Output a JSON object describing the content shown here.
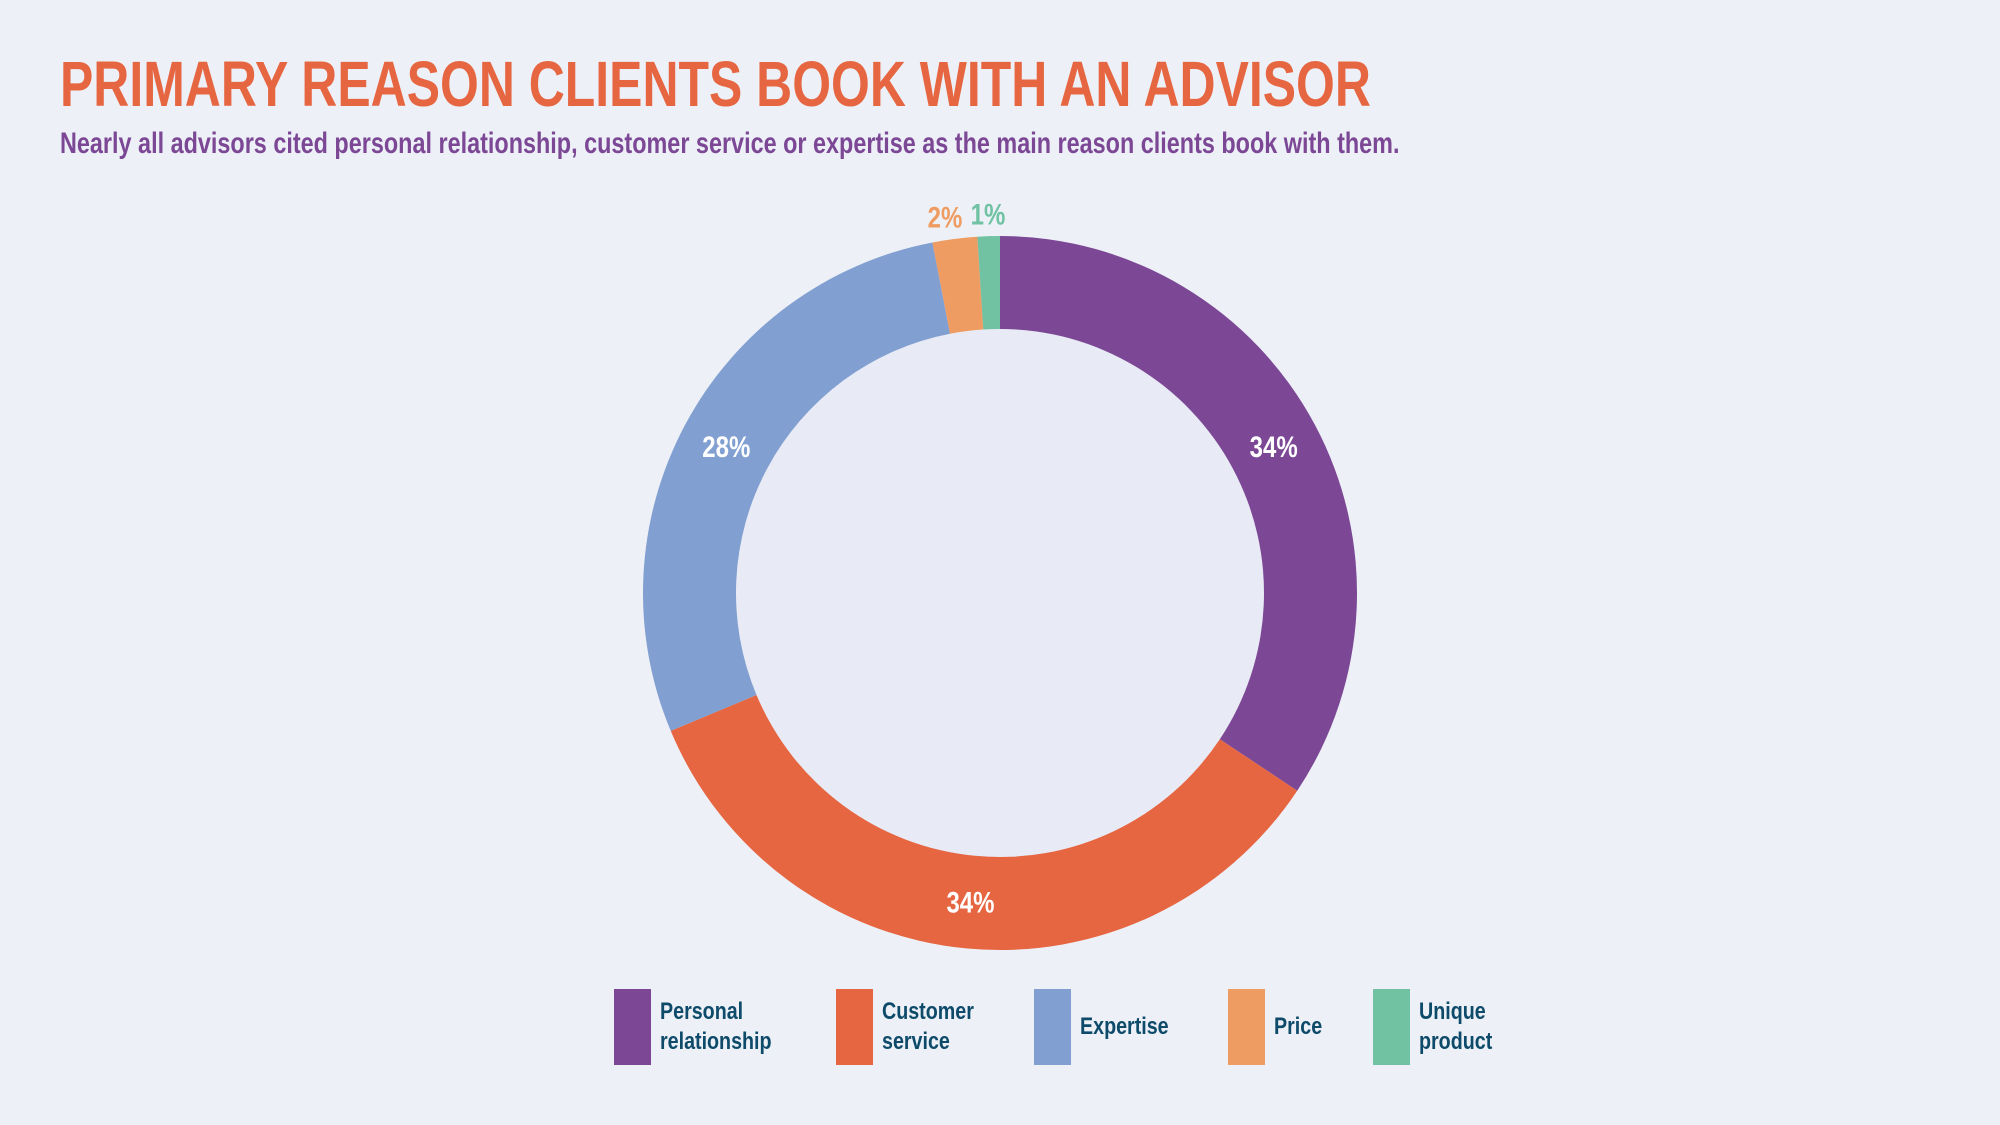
{
  "header": {
    "title": "PRIMARY REASON CLIENTS BOOK WITH AN ADVISOR",
    "subtitle": "Nearly all advisors cited personal relationship, customer service or expertise as the main reason clients book with them."
  },
  "chart_data": {
    "type": "pie",
    "variant": "donut",
    "title": "PRIMARY REASON CLIENTS BOOK WITH AN ADVISOR",
    "subtitle": "Nearly all advisors cited personal relationship, customer service or expertise as the main reason clients book with them.",
    "categories": [
      "Personal relationship",
      "Customer service",
      "Expertise",
      "Price",
      "Unique product"
    ],
    "values": [
      34,
      34,
      28,
      2,
      1
    ],
    "value_labels": [
      "34%",
      "34%",
      "28%",
      "2%",
      "1%"
    ],
    "colors": [
      "#7c4896",
      "#e66642",
      "#819fd0",
      "#ef9c62",
      "#70c2a3"
    ],
    "label_colors": [
      "#ffffff",
      "#ffffff",
      "#ffffff",
      "#ef9c62",
      "#70c2a3"
    ],
    "legend_lines": [
      [
        "Personal",
        "relationship"
      ],
      [
        "Customer",
        "service"
      ],
      [
        "Expertise"
      ],
      [
        "Price"
      ],
      [
        "Unique",
        "product"
      ]
    ],
    "legend_position": "bottom",
    "hole_color": "#e8ebf5"
  }
}
